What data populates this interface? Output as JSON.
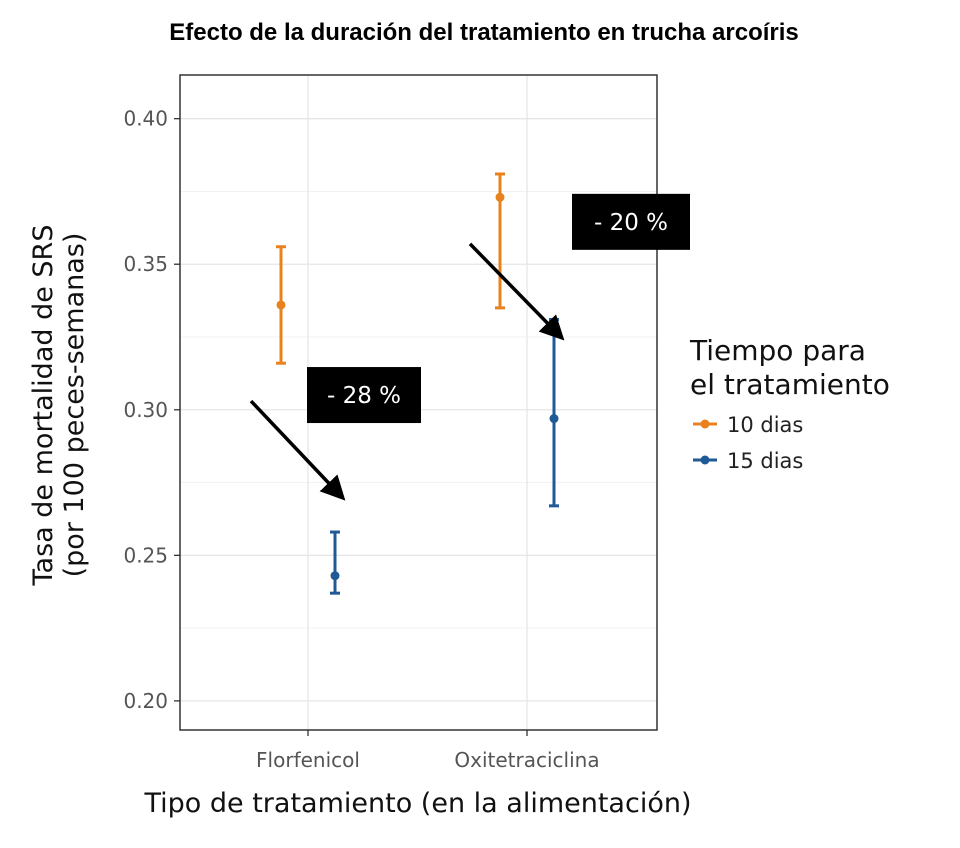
{
  "chart_data": {
    "type": "errorbar",
    "title": "Efecto de la duración del tratamiento en trucha arcoíris",
    "xlabel": "Tipo de tratamiento (en la alimentación)",
    "ylabel_line1": "Tasa de mortalidad de SRS",
    "ylabel_line2": "(por 100 peces-semanas)",
    "categories": [
      "Florfenicol",
      "Oxitetraciclina"
    ],
    "ylim": [
      0.19,
      0.415
    ],
    "yticks": [
      "0.20",
      "0.25",
      "0.30",
      "0.35",
      "0.40"
    ],
    "ytick_values": [
      0.2,
      0.25,
      0.3,
      0.35,
      0.4
    ],
    "legend": {
      "title_line1": "Tiempo para",
      "title_line2": "el tratamiento"
    },
    "series": [
      {
        "name": "10 dias",
        "color": "#E8821E",
        "values": [
          0.336,
          0.373
        ],
        "lower": [
          0.316,
          0.335
        ],
        "upper": [
          0.356,
          0.381
        ]
      },
      {
        "name": "15 dias",
        "color": "#1F5A96",
        "values": [
          0.243,
          0.297
        ],
        "lower": [
          0.237,
          0.267
        ],
        "upper": [
          0.258,
          0.331
        ]
      }
    ],
    "annotations": [
      {
        "text": "- 28 %",
        "category": "Florfenicol",
        "from_value": 0.303,
        "to_value": 0.27
      },
      {
        "text": "- 20 %",
        "category": "Oxitetraciclina",
        "from_value": 0.357,
        "to_value": 0.325
      }
    ]
  }
}
